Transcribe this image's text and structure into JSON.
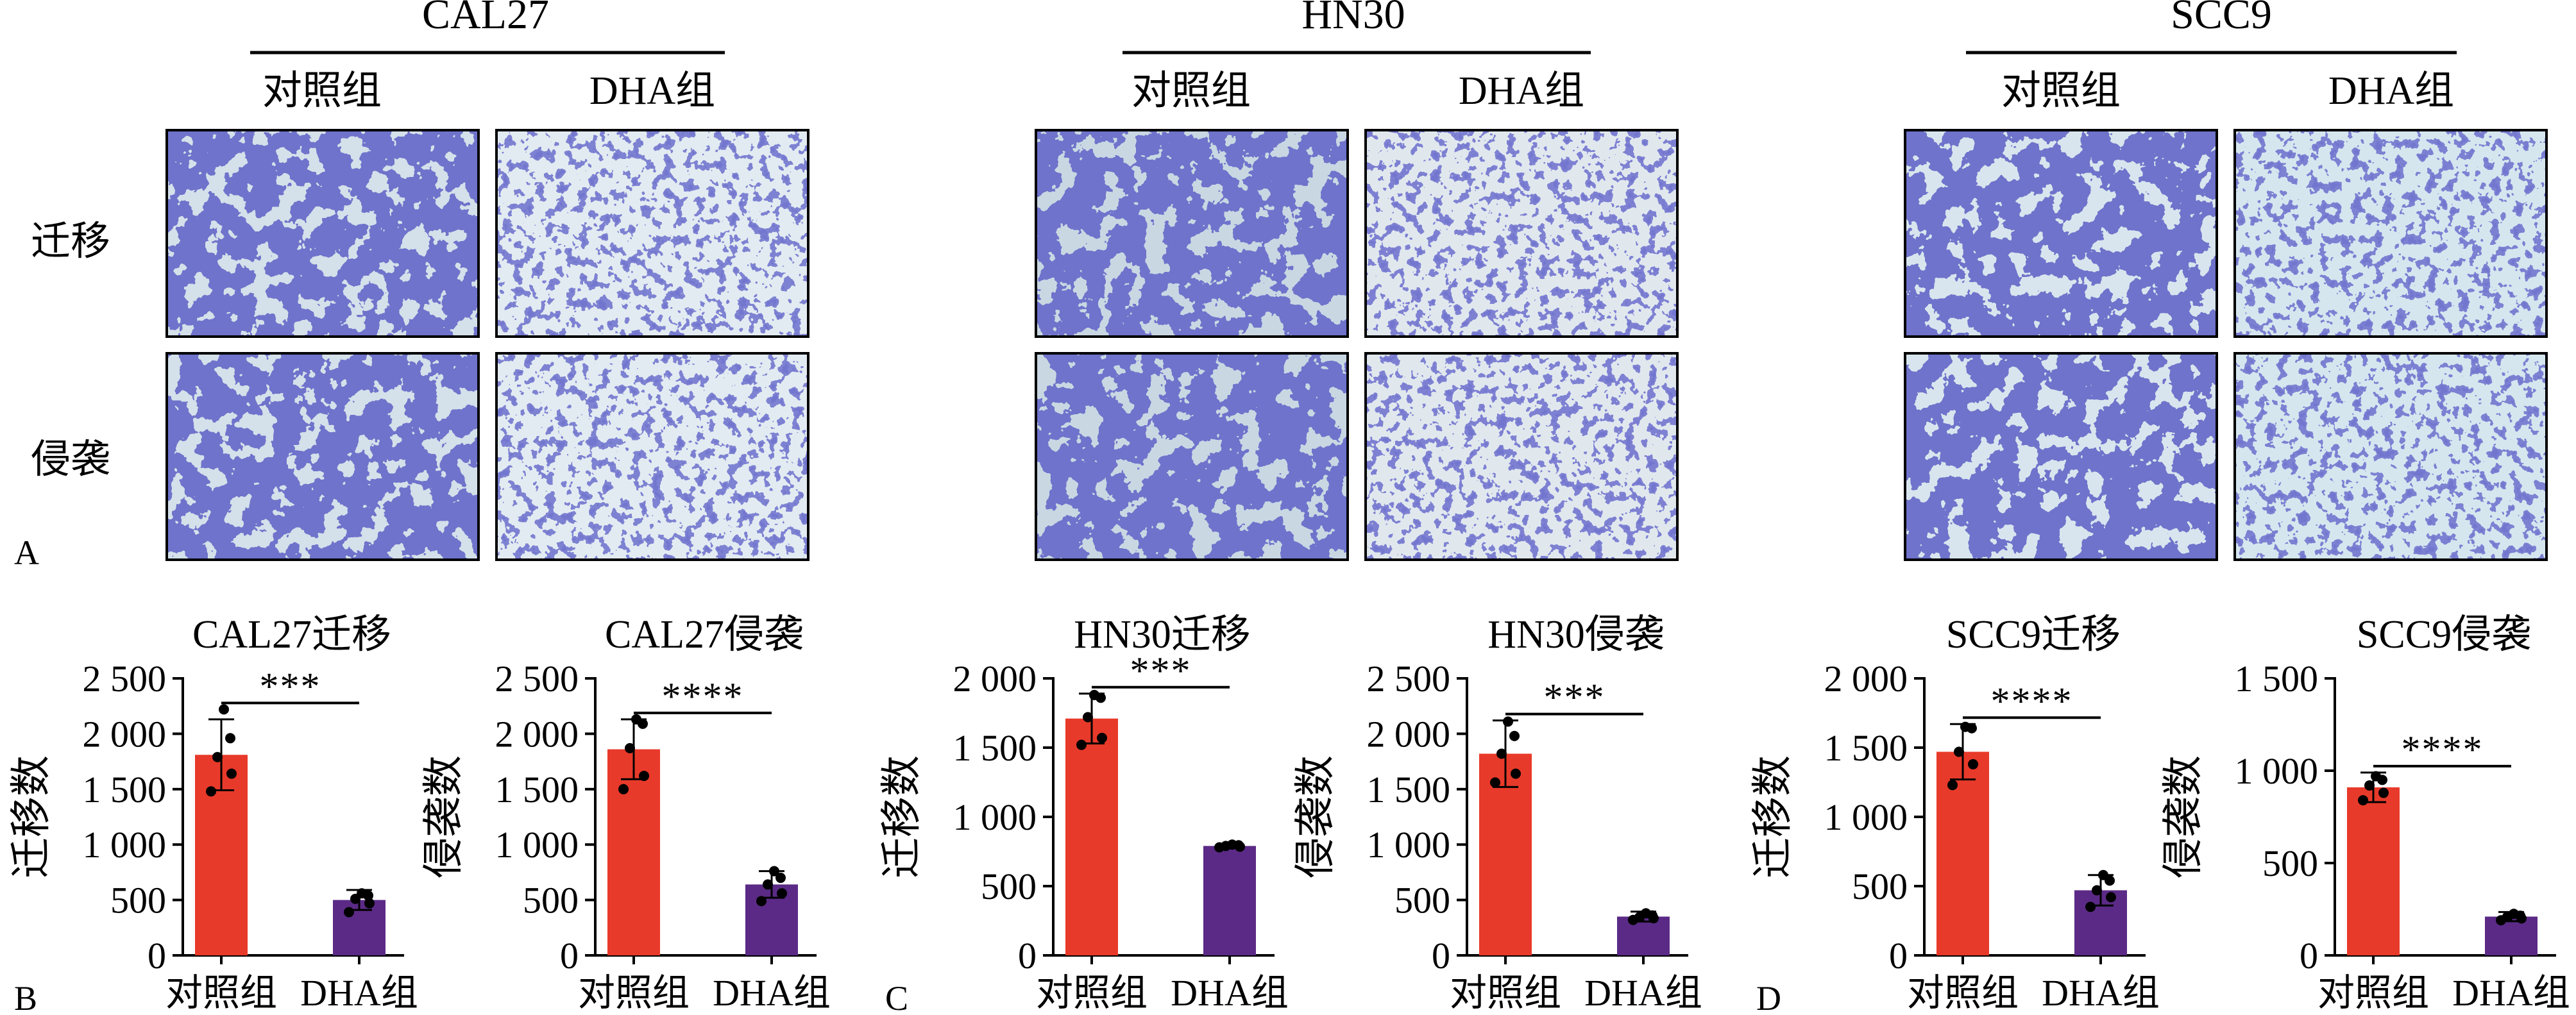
{
  "panel_a": {
    "letter": "A",
    "row_labels": [
      "迁移",
      "侵袭"
    ],
    "groups": [
      {
        "name": "CAL27",
        "conditions": [
          "对照组",
          "DHA组"
        ]
      },
      {
        "name": "HN30",
        "conditions": [
          "对照组",
          "DHA组"
        ]
      },
      {
        "name": "SCC9",
        "conditions": [
          "对照组",
          "DHA组"
        ]
      }
    ]
  },
  "panel_letters": [
    "B",
    "C",
    "D"
  ],
  "colors": {
    "control": "#e83a2a",
    "dha": "#5b2a86",
    "stain": "#2b2fa0",
    "background": "#d9e6ef"
  },
  "chart_data": [
    {
      "type": "bar",
      "title": "CAL27迁移",
      "ylabel": "迁移数",
      "categories": [
        "对照组",
        "DHA组"
      ],
      "values": [
        1810,
        500
      ],
      "errors": [
        320,
        90
      ],
      "points": [
        [
          1480,
          1640,
          1790,
          1960,
          2220
        ],
        [
          390,
          470,
          510,
          540,
          560
        ]
      ],
      "ylim": [
        0,
        2500
      ],
      "yticks": [
        0,
        500,
        1000,
        1500,
        2000,
        2500
      ],
      "yticklabels": [
        "0",
        "500",
        "1 000",
        "1 500",
        "2 000",
        "2 500"
      ],
      "significance": "***"
    },
    {
      "type": "bar",
      "title": "CAL27侵袭",
      "ylabel": "侵袭数",
      "categories": [
        "对照组",
        "DHA组"
      ],
      "values": [
        1860,
        640
      ],
      "errors": [
        270,
        120
      ],
      "points": [
        [
          1500,
          1620,
          1870,
          2090,
          2130
        ],
        [
          490,
          560,
          640,
          700,
          760
        ]
      ],
      "ylim": [
        0,
        2500
      ],
      "yticks": [
        0,
        500,
        1000,
        1500,
        2000,
        2500
      ],
      "yticklabels": [
        "0",
        "500",
        "1 000",
        "1 500",
        "2 000",
        "2 500"
      ],
      "significance": "****"
    },
    {
      "type": "bar",
      "title": "HN30迁移",
      "ylabel": "迁移数",
      "categories": [
        "对照组",
        "DHA组"
      ],
      "values": [
        1710,
        790
      ],
      "errors": [
        180,
        15
      ],
      "points": [
        [
          1520,
          1570,
          1720,
          1860,
          1880
        ],
        [
          780,
          785,
          790,
          795,
          800
        ]
      ],
      "ylim": [
        0,
        2000
      ],
      "yticks": [
        0,
        500,
        1000,
        1500,
        2000
      ],
      "yticklabels": [
        "0",
        "500",
        "1 000",
        "1 500",
        "2 000"
      ],
      "significance": "***"
    },
    {
      "type": "bar",
      "title": "HN30侵袭",
      "ylabel": "侵袭数",
      "categories": [
        "对照组",
        "DHA组"
      ],
      "values": [
        1820,
        350
      ],
      "errors": [
        300,
        45
      ],
      "points": [
        [
          1560,
          1640,
          1820,
          1980,
          2110
        ],
        [
          320,
          335,
          345,
          360,
          380
        ]
      ],
      "ylim": [
        0,
        2500
      ],
      "yticks": [
        0,
        500,
        1000,
        1500,
        2000,
        2500
      ],
      "yticklabels": [
        "0",
        "500",
        "1 000",
        "1 500",
        "2 000",
        "2 500"
      ],
      "significance": "***"
    },
    {
      "type": "bar",
      "title": "SCC9迁移",
      "ylabel": "迁移数",
      "categories": [
        "对照组",
        "DHA组"
      ],
      "values": [
        1470,
        470
      ],
      "errors": [
        200,
        110
      ],
      "points": [
        [
          1230,
          1380,
          1470,
          1640,
          1650
        ],
        [
          350,
          420,
          470,
          540,
          580
        ]
      ],
      "ylim": [
        0,
        2000
      ],
      "yticks": [
        0,
        500,
        1000,
        1500,
        2000
      ],
      "yticklabels": [
        "0",
        "500",
        "1 000",
        "1 500",
        "2 000"
      ],
      "significance": "****"
    },
    {
      "type": "bar",
      "title": "SCC9侵袭",
      "ylabel": "侵袭数",
      "categories": [
        "对照组",
        "DHA组"
      ],
      "values": [
        910,
        210
      ],
      "errors": [
        80,
        25
      ],
      "points": [
        [
          840,
          880,
          920,
          950,
          970
        ],
        [
          190,
          200,
          210,
          215,
          225
        ]
      ],
      "ylim": [
        0,
        1500
      ],
      "yticks": [
        0,
        500,
        1000,
        1500
      ],
      "yticklabels": [
        "0",
        "500",
        "1 000",
        "1 500"
      ],
      "significance": "****"
    }
  ]
}
